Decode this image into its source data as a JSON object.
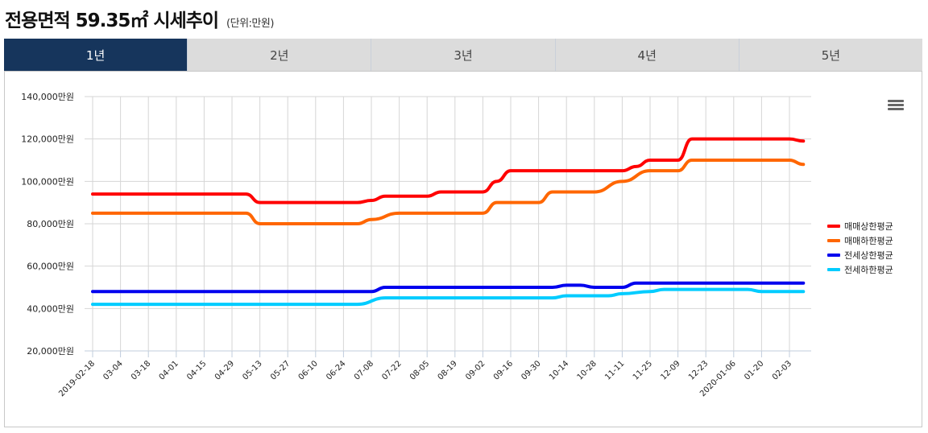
{
  "header": {
    "title": "전용면적 59.35㎡ 시세추이",
    "unit": "(단위:만원)"
  },
  "tabs": [
    {
      "label": "1년",
      "active": true
    },
    {
      "label": "2년",
      "active": false
    },
    {
      "label": "3년",
      "active": false
    },
    {
      "label": "4년",
      "active": false
    },
    {
      "label": "5년",
      "active": false
    }
  ],
  "menu": {
    "icon": "hamburger-menu-icon"
  },
  "colors": {
    "sale_upper": "#ff0000",
    "sale_lower": "#ff6600",
    "jeonse_upper": "#0000ee",
    "jeonse_lower": "#00ccff",
    "grid": "#d6d6d6",
    "axis": "#c0ccdc",
    "active_tab": "#16355c"
  },
  "chart_data": {
    "type": "line",
    "title": "전용면적 59.35㎡ 시세추이",
    "subtitle": "(단위:만원)",
    "xlabel": "",
    "ylabel": "",
    "ylim": [
      20000,
      140000
    ],
    "y_ticks": [
      "140,000만원",
      "120,000만원",
      "100,000만원",
      "80,000만원",
      "60,000만원",
      "40,000만원",
      "20,000만원"
    ],
    "y_tick_values": [
      140000,
      120000,
      100000,
      80000,
      60000,
      40000,
      20000
    ],
    "grid": true,
    "legend_position": "right",
    "categories": [
      "2019-02-18",
      "03-04",
      "03-18",
      "04-01",
      "04-15",
      "04-29",
      "05-13",
      "05-27",
      "06-10",
      "06-24",
      "07-08",
      "07-22",
      "08-05",
      "08-19",
      "09-02",
      "09-16",
      "09-30",
      "10-14",
      "10-28",
      "11-11",
      "11-25",
      "12-09",
      "12-23",
      "2020-01-06",
      "01-20",
      "02-03"
    ],
    "series": [
      {
        "name": "매매상한평균",
        "color": "#ff0000",
        "x": [
          0,
          5.5,
          6,
          9.5,
          10,
          10.5,
          11,
          12,
          12.5,
          13,
          14,
          14.5,
          15,
          19,
          19.5,
          20,
          21,
          21.5,
          22,
          25,
          25.5
        ],
        "values": [
          94000,
          94000,
          90000,
          90000,
          91000,
          93000,
          93000,
          93000,
          95000,
          95000,
          95000,
          100000,
          105000,
          105000,
          107000,
          110000,
          110000,
          120000,
          120000,
          120000,
          119000
        ]
      },
      {
        "name": "매매하한평균",
        "color": "#ff6600",
        "x": [
          0,
          5.5,
          6,
          9.5,
          10,
          11,
          14,
          14.5,
          16,
          16.5,
          18,
          19,
          20,
          21,
          21.5,
          22,
          25,
          25.5
        ],
        "values": [
          85000,
          85000,
          80000,
          80000,
          82000,
          85000,
          85000,
          90000,
          90000,
          95000,
          95000,
          100000,
          105000,
          105000,
          110000,
          110000,
          110000,
          108000
        ]
      },
      {
        "name": "전세상한평균",
        "color": "#0000ee",
        "x": [
          0,
          10,
          10.5,
          16.5,
          17,
          17.5,
          18,
          19,
          19.5,
          25.5
        ],
        "values": [
          48000,
          48000,
          50000,
          50000,
          51000,
          51000,
          50000,
          50000,
          52000,
          52000
        ]
      },
      {
        "name": "전세하한평균",
        "color": "#00ccff",
        "x": [
          0,
          9.5,
          10.5,
          16.5,
          17,
          18.5,
          19,
          20,
          20.5,
          23.5,
          24,
          25.5
        ],
        "values": [
          42000,
          42000,
          45000,
          45000,
          46000,
          46000,
          47000,
          48000,
          49000,
          49000,
          48000,
          48000
        ]
      }
    ]
  }
}
